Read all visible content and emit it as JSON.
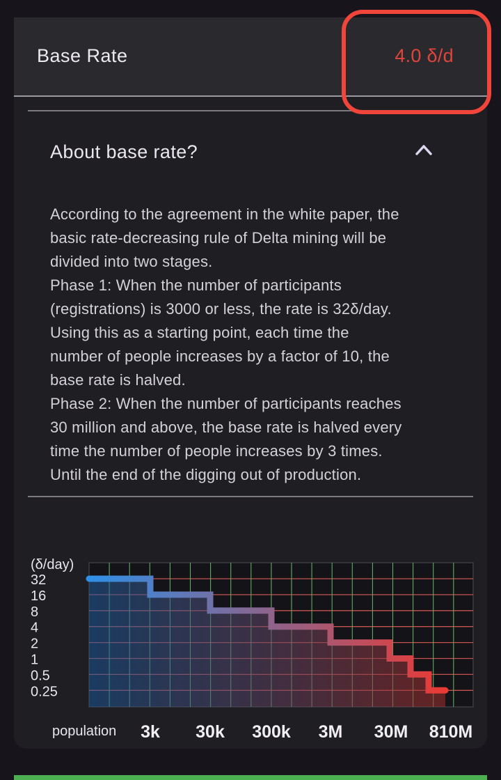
{
  "header": {
    "label": "Base Rate",
    "value": "4.0 δ/d"
  },
  "faq": {
    "question": "About base rate?",
    "lines": [
      "According to the agreement in the white paper, the",
      "basic rate-decreasing rule of Delta mining will be",
      "divided into two stages.",
      "Phase 1: When the number of participants",
      "(registrations) is 3000 or less, the rate is 32δ/day.",
      "Using this as a starting point, each time the",
      "number of people increases by a factor of 10, the",
      "base rate is halved.",
      "Phase 2: When the number of participants reaches",
      "30 million and above, the base rate is halved every",
      "time the number of people increases by 3 times.",
      "Until the end of the digging out of production."
    ]
  },
  "icons": {
    "collapse": "chevron-up-icon"
  },
  "colors": {
    "accent_red": "#e0453c",
    "highlight": "#f0453a",
    "line_start": "#2f8fe6",
    "line_end": "#ea3a34",
    "grid_h": "#c4524f",
    "grid_v": "#5fae64",
    "bottom_bar": "#4caf50"
  },
  "chart_data": {
    "type": "line",
    "ylabel": "(δ/day)",
    "xlabel": "population",
    "y_ticks": [
      "32",
      "16",
      "8",
      "4",
      "2",
      "1",
      "0.5",
      "0.25"
    ],
    "x_ticks": [
      "3k",
      "30k",
      "300k",
      "3M",
      "30M",
      "810M"
    ],
    "step": true,
    "series": [
      {
        "x": [
          "0",
          "3k",
          "30k",
          "300k",
          "3M",
          "30M",
          "90M",
          "270M",
          "810M"
        ],
        "values": [
          32,
          16,
          8,
          4,
          2,
          1,
          0.5,
          0.25,
          0.25
        ]
      }
    ]
  }
}
